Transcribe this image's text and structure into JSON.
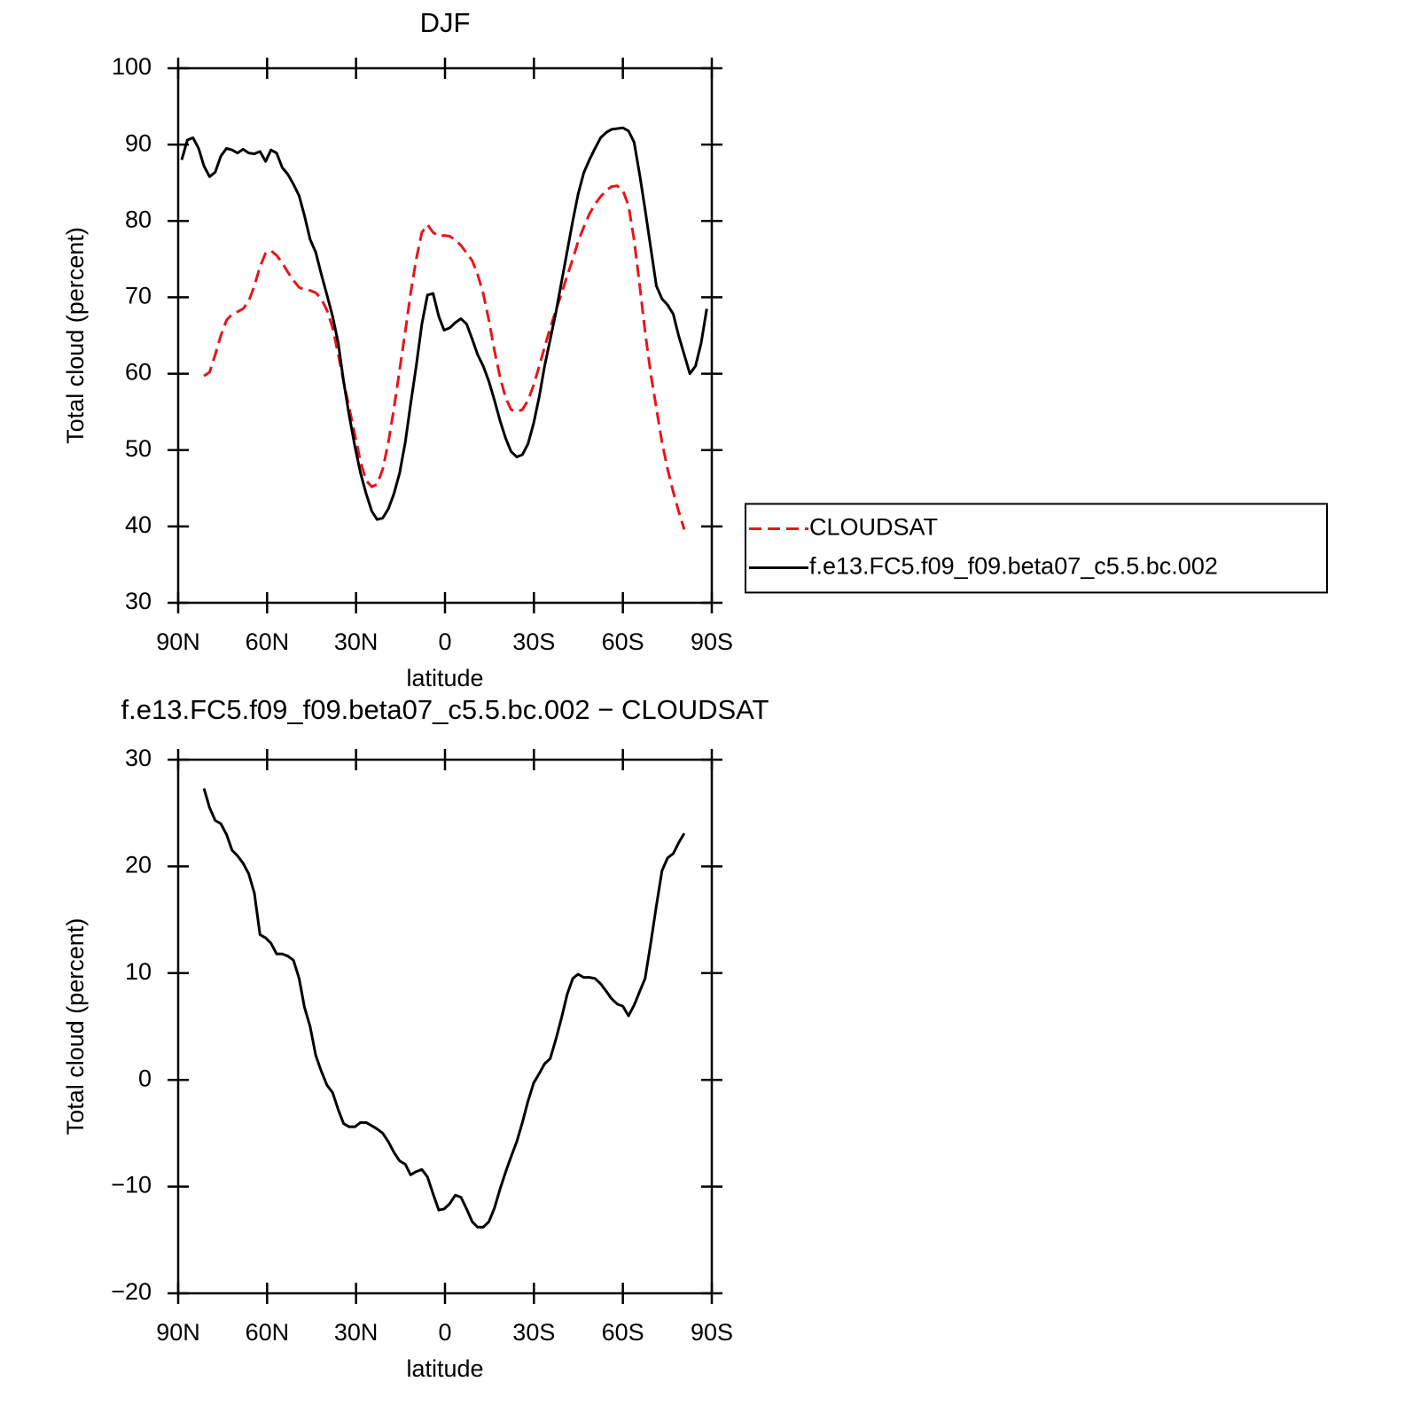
{
  "chart_data": [
    {
      "type": "line",
      "title": "DJF",
      "xlabel": "latitude",
      "ylabel": "Total cloud (percent)",
      "x": [
        88.8,
        86.9,
        85.0,
        83.1,
        81.3,
        79.4,
        77.5,
        75.6,
        73.7,
        71.8,
        70.0,
        68.1,
        66.2,
        64.3,
        62.4,
        60.5,
        58.7,
        56.8,
        54.9,
        53.0,
        51.1,
        49.2,
        47.4,
        45.5,
        43.6,
        41.7,
        39.8,
        37.9,
        36.0,
        34.2,
        32.3,
        30.4,
        28.5,
        26.6,
        24.7,
        22.9,
        21.0,
        19.1,
        17.2,
        15.3,
        13.4,
        11.6,
        9.7,
        7.8,
        5.9,
        4.0,
        2.1,
        0.3,
        -1.6,
        -3.5,
        -5.4,
        -7.3,
        -9.2,
        -11.0,
        -12.9,
        -14.8,
        -16.7,
        -18.6,
        -20.5,
        -22.3,
        -24.2,
        -26.1,
        -28.0,
        -29.9,
        -31.8,
        -33.6,
        -35.5,
        -37.4,
        -39.3,
        -41.2,
        -43.1,
        -44.9,
        -46.8,
        -48.7,
        -50.6,
        -52.5,
        -54.4,
        -56.2,
        -58.1,
        -60.0,
        -61.9,
        -63.8,
        -65.7,
        -67.5,
        -69.4,
        -71.3,
        -73.2,
        -75.1,
        -77.0,
        -78.8,
        -80.7,
        -82.6,
        -84.5,
        -86.4,
        -88.3
      ],
      "series": [
        {
          "name": "CLOUDSAT",
          "color": "#e8151b",
          "linestyle": "dashed",
          "values": [
            null,
            null,
            null,
            null,
            59.7,
            60.2,
            62.5,
            65.0,
            67.0,
            67.8,
            68.1,
            68.5,
            69.5,
            71.5,
            74.0,
            75.8,
            76.1,
            75.5,
            74.5,
            73.3,
            72.2,
            71.3,
            71.0,
            70.9,
            70.6,
            69.8,
            68.3,
            66.0,
            62.5,
            59.0,
            55.5,
            52.0,
            48.5,
            46.0,
            45.2,
            45.5,
            47.5,
            51.0,
            55.5,
            60.5,
            65.5,
            70.5,
            75.0,
            78.5,
            79.5,
            78.5,
            78.0,
            78.1,
            78.0,
            77.5,
            76.8,
            75.8,
            74.8,
            73.0,
            70.5,
            67.0,
            63.0,
            59.5,
            56.8,
            55.3,
            55.0,
            55.3,
            56.5,
            58.5,
            61.0,
            63.5,
            66.0,
            68.3,
            70.5,
            72.8,
            75.0,
            77.3,
            79.2,
            80.9,
            82.2,
            83.2,
            84.0,
            84.5,
            84.6,
            84.0,
            82.0,
            77.5,
            71.5,
            65.5,
            60.0,
            55.5,
            51.0,
            47.5,
            44.5,
            42.0,
            39.6,
            null,
            null,
            null,
            null
          ]
        },
        {
          "name": "f.e13.FC5.f09_f09.beta07_c5.5.bc.002",
          "color": "#000000",
          "linestyle": "solid",
          "values": [
            88.0,
            90.6,
            90.9,
            89.5,
            87.2,
            85.8,
            86.4,
            88.5,
            89.5,
            89.3,
            88.9,
            89.4,
            88.9,
            88.8,
            89.1,
            87.8,
            89.3,
            88.9,
            87.0,
            86.1,
            84.8,
            83.3,
            80.7,
            77.6,
            75.9,
            73.0,
            70.3,
            67.5,
            64.0,
            59.0,
            54.5,
            50.5,
            47.0,
            44.3,
            42.0,
            40.9,
            41.1,
            42.3,
            44.3,
            47.0,
            51.0,
            56.0,
            61.0,
            66.5,
            70.3,
            70.5,
            67.5,
            65.7,
            66.0,
            66.7,
            67.2,
            66.5,
            64.5,
            62.5,
            61.0,
            59.0,
            56.5,
            53.8,
            51.5,
            49.8,
            49.1,
            49.4,
            50.8,
            53.5,
            57.0,
            61.0,
            64.5,
            68.0,
            72.0,
            76.0,
            80.0,
            83.5,
            86.3,
            88.0,
            89.5,
            90.9,
            91.6,
            92.0,
            92.1,
            92.2,
            91.8,
            90.3,
            86.0,
            81.5,
            76.5,
            71.5,
            69.8,
            69.0,
            67.8,
            65.0,
            62.5,
            60.0,
            61.0,
            64.0,
            68.5
          ]
        }
      ],
      "xlim": [
        90,
        -90
      ],
      "xticks": [
        {
          "value": 90,
          "label": "90N"
        },
        {
          "value": 60,
          "label": "60N"
        },
        {
          "value": 30,
          "label": "30N"
        },
        0,
        {
          "value": -30,
          "label": "30S"
        },
        {
          "value": -60,
          "label": "60S"
        },
        {
          "value": -90,
          "label": "90S"
        }
      ],
      "ylim": [
        30,
        100
      ],
      "yticks": [
        30,
        40,
        50,
        60,
        70,
        80,
        90,
        100
      ],
      "legend": "outside-right"
    },
    {
      "type": "line",
      "title": "f.e13.FC5.f09_f09.beta07_c5.5.bc.002 − CLOUDSAT",
      "xlabel": "latitude",
      "ylabel": "Total cloud (percent)",
      "x": [
        88.8,
        86.9,
        85.0,
        83.1,
        81.3,
        79.4,
        77.5,
        75.6,
        73.7,
        71.8,
        70.0,
        68.1,
        66.2,
        64.3,
        62.4,
        60.5,
        58.7,
        56.8,
        54.9,
        53.0,
        51.1,
        49.2,
        47.4,
        45.5,
        43.6,
        41.7,
        39.8,
        37.9,
        36.0,
        34.2,
        32.3,
        30.4,
        28.5,
        26.6,
        24.7,
        22.9,
        21.0,
        19.1,
        17.2,
        15.3,
        13.4,
        11.6,
        9.7,
        7.8,
        5.9,
        4.0,
        2.1,
        0.3,
        -1.6,
        -3.5,
        -5.4,
        -7.3,
        -9.2,
        -11.0,
        -12.9,
        -14.8,
        -16.7,
        -18.6,
        -20.5,
        -22.3,
        -24.2,
        -26.1,
        -28.0,
        -29.9,
        -31.8,
        -33.6,
        -35.5,
        -37.4,
        -39.3,
        -41.2,
        -43.1,
        -44.9,
        -46.8,
        -48.7,
        -50.6,
        -52.5,
        -54.4,
        -56.2,
        -58.1,
        -60.0,
        -61.9,
        -63.8,
        -65.7,
        -67.5,
        -69.4,
        -71.3,
        -73.2,
        -75.1,
        -77.0,
        -78.8,
        -80.7,
        -82.6,
        -84.5,
        -86.4,
        -88.3
      ],
      "series": [
        {
          "color": "#000000",
          "linestyle": "solid",
          "values": [
            null,
            null,
            null,
            null,
            27.3,
            25.5,
            24.3,
            24.0,
            23.0,
            21.5,
            21.0,
            20.3,
            19.3,
            17.5,
            13.6,
            13.3,
            12.8,
            11.8,
            11.8,
            11.6,
            11.2,
            9.5,
            6.8,
            5.0,
            2.3,
            0.8,
            -0.5,
            -1.2,
            -2.8,
            -4.1,
            -4.4,
            -4.4,
            -4.0,
            -4.0,
            -4.3,
            -4.6,
            -5.0,
            -5.8,
            -6.8,
            -7.6,
            -7.9,
            -8.9,
            -8.6,
            -8.4,
            -9.1,
            -10.7,
            -12.2,
            -12.1,
            -11.6,
            -10.8,
            -11.0,
            -12.1,
            -13.3,
            -13.8,
            -13.8,
            -13.3,
            -12.0,
            -10.2,
            -8.6,
            -7.2,
            -5.8,
            -4.0,
            -2.0,
            -0.3,
            0.6,
            1.5,
            2.0,
            3.8,
            5.8,
            8.0,
            9.5,
            9.9,
            9.6,
            9.6,
            9.5,
            9.0,
            8.3,
            7.6,
            7.1,
            6.9,
            6.0,
            7.0,
            8.3,
            9.5,
            12.8,
            16.3,
            19.6,
            20.8,
            21.2,
            22.2,
            23.1,
            null,
            null,
            null,
            null
          ]
        }
      ],
      "xlim": [
        90,
        -90
      ],
      "xticks": [
        {
          "value": 90,
          "label": "90N"
        },
        {
          "value": 60,
          "label": "60N"
        },
        {
          "value": 30,
          "label": "30N"
        },
        0,
        {
          "value": -30,
          "label": "30S"
        },
        {
          "value": -60,
          "label": "60S"
        },
        {
          "value": -90,
          "label": "90S"
        }
      ],
      "ylim": [
        -20,
        30
      ],
      "yticks": [
        {
          "value": -20,
          "label": "−20"
        },
        {
          "value": -10,
          "label": "−10"
        },
        0,
        10,
        20,
        30
      ]
    }
  ]
}
